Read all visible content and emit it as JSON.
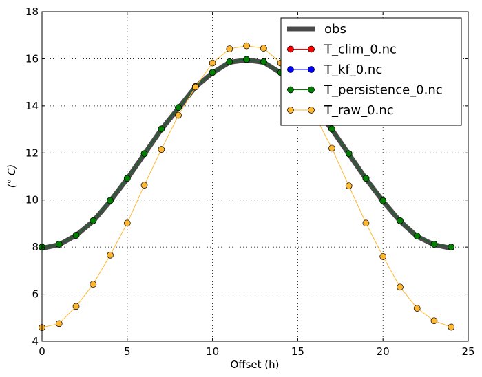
{
  "chart_data": {
    "type": "line",
    "xlabel": "Offset (h)",
    "ylabel": "(° C)",
    "xlim": [
      0,
      25
    ],
    "ylim": [
      4,
      18
    ],
    "xticks": [
      0,
      5,
      10,
      15,
      20,
      25
    ],
    "yticks": [
      4,
      6,
      8,
      10,
      12,
      14,
      16,
      18
    ],
    "grid": true,
    "legend_position": "top-right",
    "x": [
      0,
      1,
      2,
      3,
      4,
      5,
      6,
      7,
      8,
      9,
      10,
      11,
      12,
      13,
      14,
      15,
      16,
      17,
      18,
      19,
      20,
      21,
      22,
      23,
      24
    ],
    "series": [
      {
        "name": "obs",
        "color": "#4a4a4a",
        "style": "thick-line",
        "values": [
          7.95,
          8.1,
          8.5,
          9.1,
          9.95,
          10.9,
          11.95,
          13.0,
          13.9,
          14.8,
          15.4,
          15.85,
          15.95,
          15.85,
          15.4,
          14.8,
          13.95,
          13.0,
          11.95,
          10.9,
          9.95,
          9.1,
          8.45,
          8.1,
          7.95
        ]
      },
      {
        "name": "T_clim_0.nc",
        "color": "#ff0000",
        "style": "line-marker",
        "values": [
          8.0,
          8.12,
          8.5,
          9.12,
          9.98,
          10.92,
          11.97,
          13.02,
          13.93,
          14.82,
          15.42,
          15.87,
          15.97,
          15.87,
          15.42,
          14.82,
          13.97,
          13.02,
          11.97,
          10.92,
          9.97,
          9.12,
          8.47,
          8.12,
          8.0
        ]
      },
      {
        "name": "T_kf_0.nc",
        "color": "#0000ff",
        "style": "line-marker",
        "values": [
          8.0,
          8.12,
          8.5,
          9.12,
          9.98,
          10.92,
          11.97,
          13.02,
          13.93,
          14.82,
          15.42,
          15.87,
          15.97,
          15.87,
          15.42,
          14.82,
          13.97,
          13.02,
          11.97,
          10.92,
          9.97,
          9.12,
          8.47,
          8.12,
          8.0
        ]
      },
      {
        "name": "T_persistence_0.nc",
        "color": "#008000",
        "style": "line-marker",
        "values": [
          8.0,
          8.12,
          8.5,
          9.12,
          9.98,
          10.92,
          11.97,
          13.02,
          13.93,
          14.82,
          15.42,
          15.87,
          15.97,
          15.87,
          15.42,
          14.82,
          13.97,
          13.02,
          11.97,
          10.92,
          9.97,
          9.12,
          8.47,
          8.12,
          8.0
        ]
      },
      {
        "name": "T_raw_0.nc",
        "color": "#ffb732",
        "style": "line-marker",
        "values": [
          4.58,
          4.75,
          5.48,
          6.42,
          7.66,
          9.02,
          10.63,
          12.15,
          13.6,
          14.8,
          15.82,
          16.42,
          16.55,
          16.45,
          15.82,
          14.8,
          13.6,
          12.2,
          10.6,
          9.02,
          7.6,
          6.3,
          5.4,
          4.87,
          4.6
        ]
      }
    ]
  }
}
